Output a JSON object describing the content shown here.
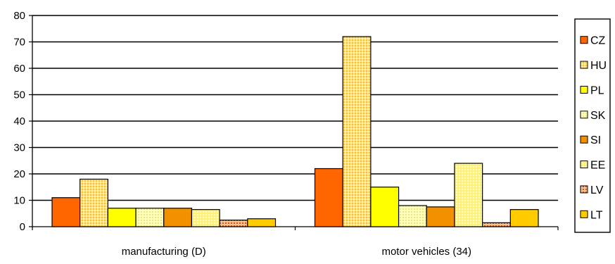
{
  "chart_data": {
    "type": "bar",
    "categories": [
      "manufacturing (D)",
      "motor vehicles (34)"
    ],
    "series": [
      {
        "name": "CZ",
        "color": "#ff6600",
        "pattern": "solid",
        "values": [
          11,
          22
        ]
      },
      {
        "name": "HU",
        "color": "#ffd966",
        "pattern": "dots",
        "values": [
          18,
          72
        ]
      },
      {
        "name": "PL",
        "color": "#ffff00",
        "pattern": "solid",
        "values": [
          7,
          15
        ]
      },
      {
        "name": "SK",
        "color": "#ffff99",
        "pattern": "dots",
        "values": [
          7,
          8
        ]
      },
      {
        "name": "SI",
        "color": "#f09000",
        "pattern": "solid",
        "values": [
          7,
          7.5
        ]
      },
      {
        "name": "EE",
        "color": "#ffff66",
        "pattern": "dots",
        "values": [
          6.5,
          24
        ]
      },
      {
        "name": "LV",
        "color": "#ffcc99",
        "pattern": "dots-red",
        "values": [
          2.5,
          1.5
        ]
      },
      {
        "name": "LT",
        "color": "#ffcc00",
        "pattern": "solid",
        "values": [
          3,
          6.5
        ]
      }
    ],
    "title": "",
    "xlabel": "",
    "ylabel": "",
    "ylim": [
      0,
      80
    ],
    "yticks": [
      0,
      10,
      20,
      30,
      40,
      50,
      60,
      70,
      80
    ],
    "grid": true,
    "legend_position": "right"
  }
}
